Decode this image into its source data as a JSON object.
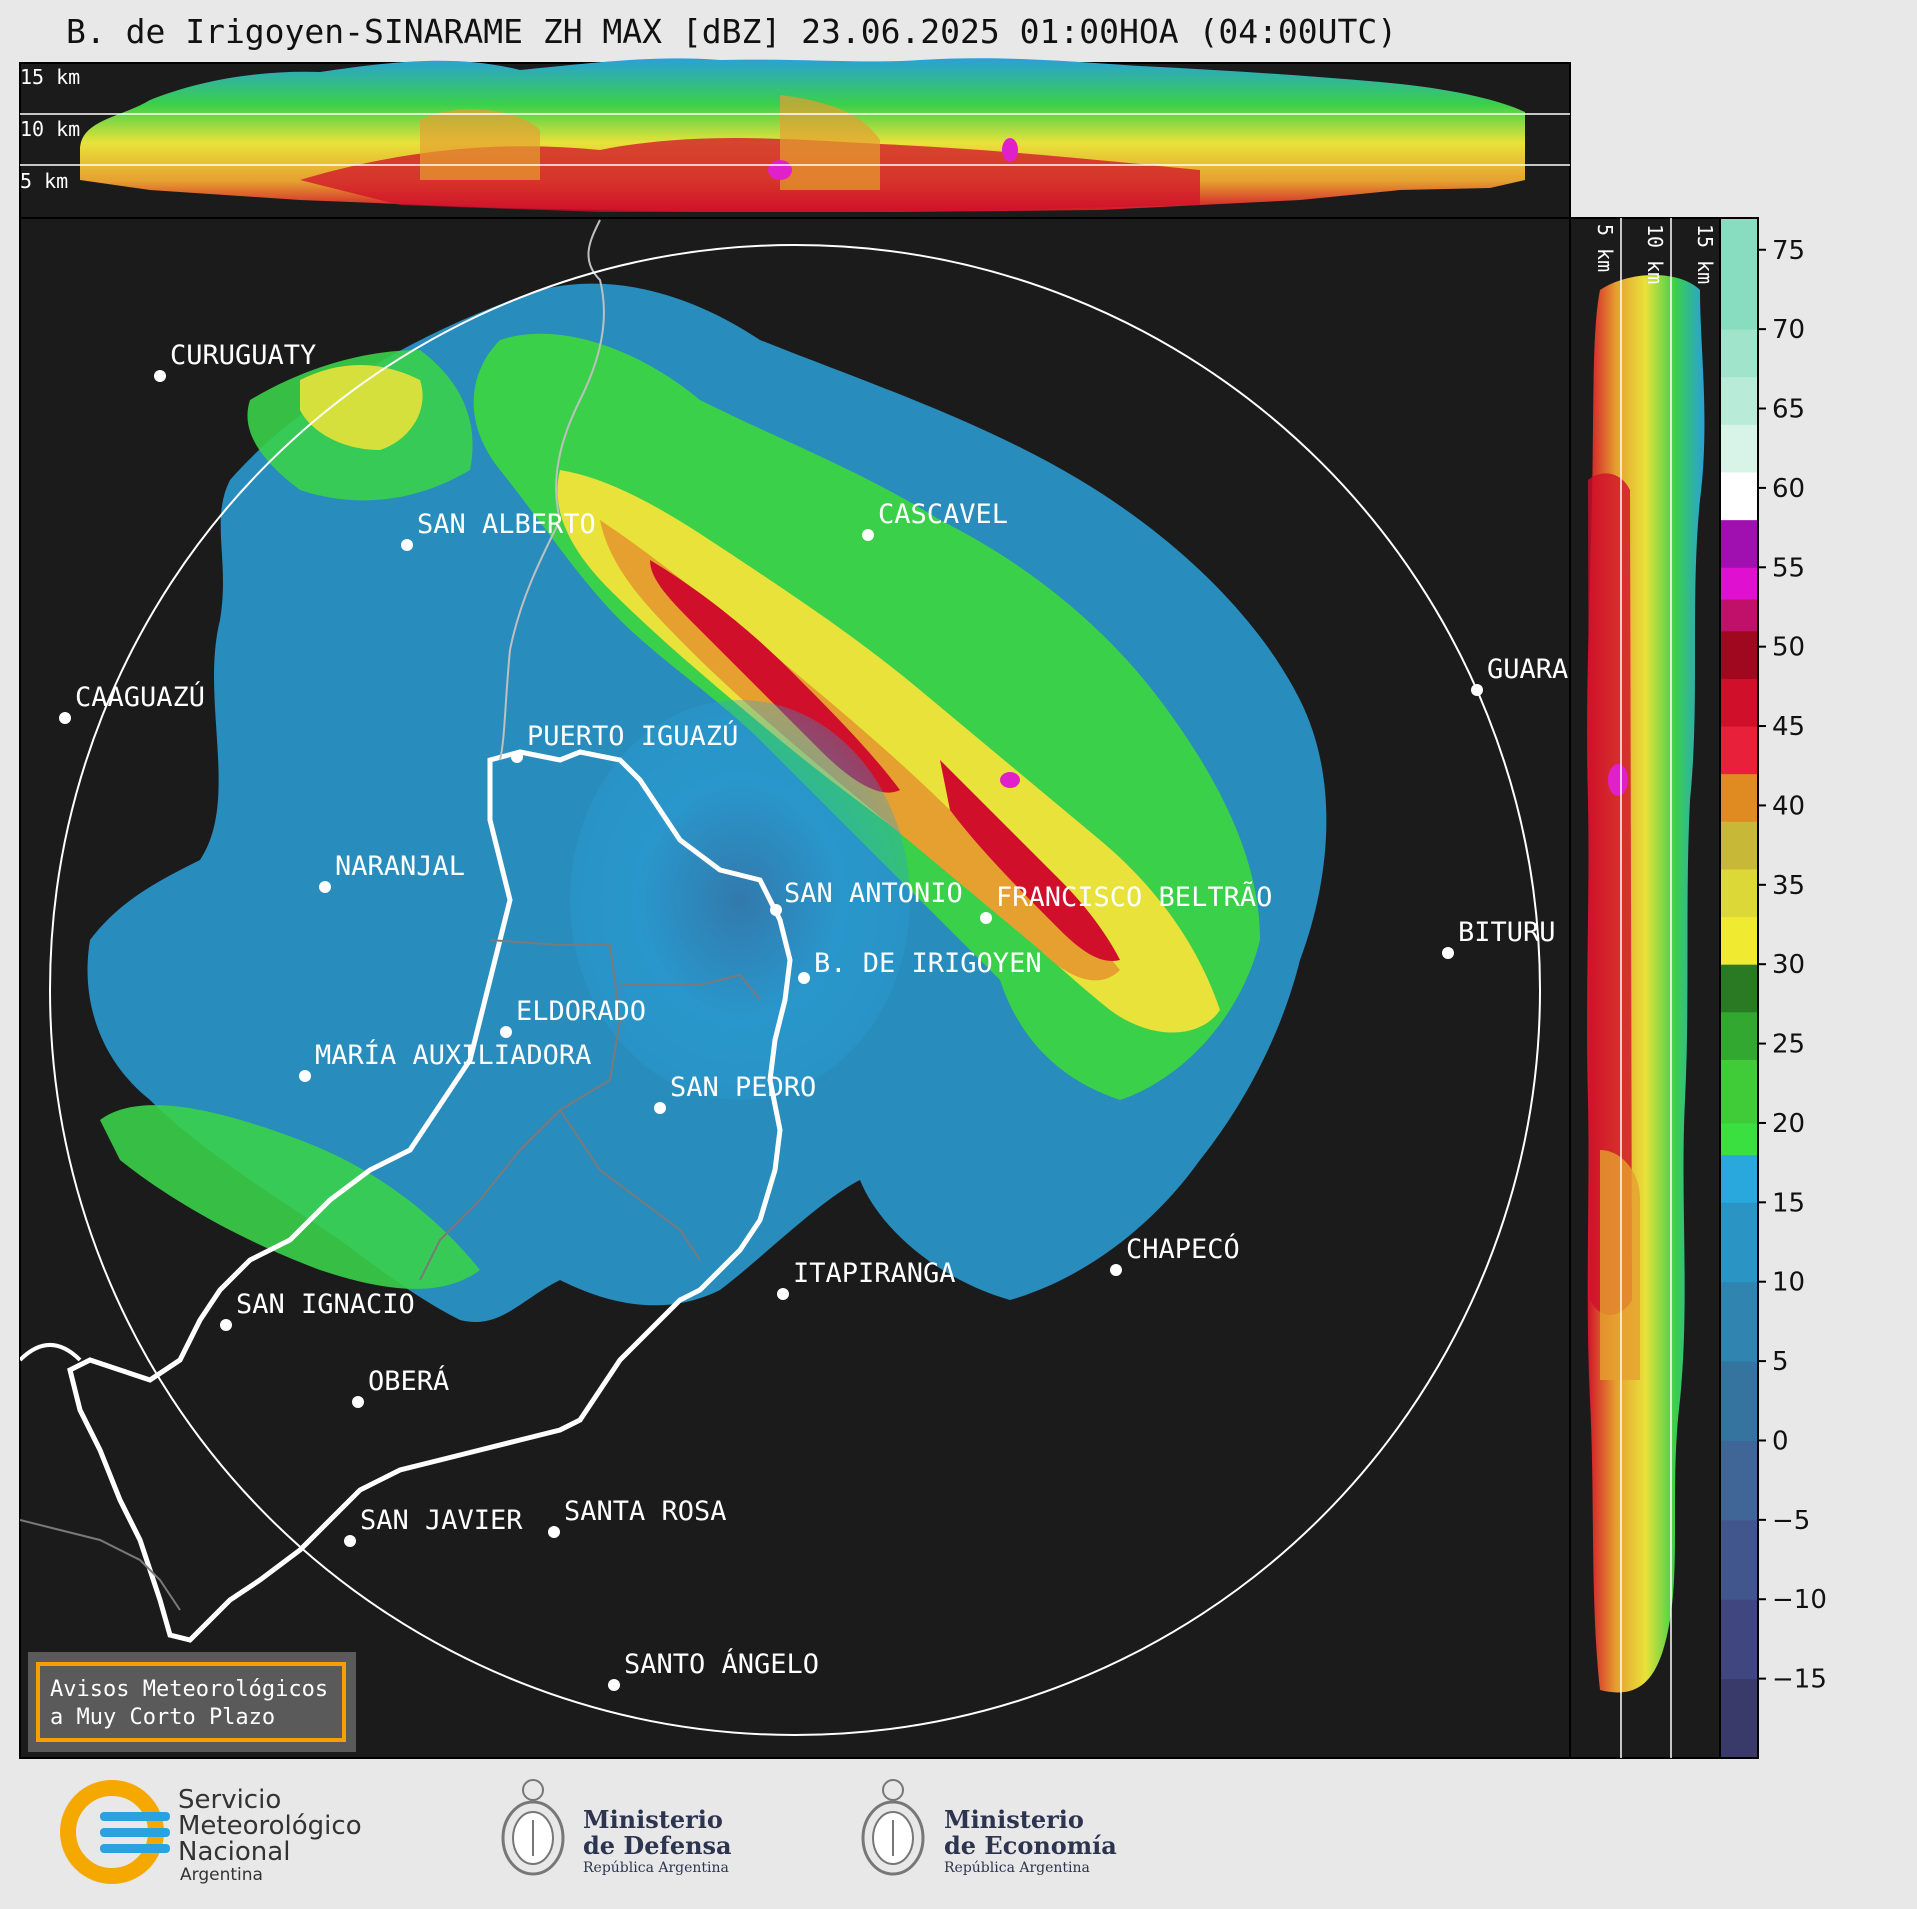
{
  "title": "B. de Irigoyen-SINARAME ZH MAX [dBZ] 23.06.2025 01:00HOA (04:00UTC)",
  "top_panel": {
    "labels": [
      "15 km",
      "10 km",
      "5 km"
    ]
  },
  "side_panel": {
    "labels": [
      "5 km",
      "10 km",
      "15 km"
    ]
  },
  "colorbar": {
    "ticks": [
      "75",
      "70",
      "65",
      "60",
      "55",
      "50",
      "45",
      "40",
      "35",
      "30",
      "25",
      "20",
      "15",
      "10",
      "5",
      "0",
      "−5",
      "−10",
      "−15"
    ]
  },
  "cities": [
    {
      "name": "CURUGUATY"
    },
    {
      "name": "SAN ALBERTO"
    },
    {
      "name": "CASCAVEL"
    },
    {
      "name": "CAAGUAZÚ"
    },
    {
      "name": "GUARA"
    },
    {
      "name": "PUERTO IGUAZÚ"
    },
    {
      "name": "NARANJAL"
    },
    {
      "name": "SAN ANTONIO"
    },
    {
      "name": "FRANCISCO BELTRÃO"
    },
    {
      "name": "B. DE IRIGOYEN"
    },
    {
      "name": "BITURU"
    },
    {
      "name": "ELDORADO"
    },
    {
      "name": "MARÍA AUXILIADORA"
    },
    {
      "name": "SAN PEDRO"
    },
    {
      "name": "CHAPECÓ"
    },
    {
      "name": "ITAPIRANGA"
    },
    {
      "name": "SAN IGNACIO"
    },
    {
      "name": "OBERÁ"
    },
    {
      "name": "SAN JAVIER"
    },
    {
      "name": "SANTA ROSA"
    },
    {
      "name": "SANTO ÁNGELO"
    }
  ],
  "notice": {
    "line1": "Avisos Meteorológicos",
    "line2": "a Muy Corto Plazo"
  },
  "logos": {
    "smn": {
      "line1": "Servicio",
      "line2": "Meteorológico",
      "line3": "Nacional",
      "line4": "Argentina"
    },
    "defensa": {
      "line1": "Ministerio",
      "line2": "de Defensa",
      "line3": "República Argentina"
    },
    "economia": {
      "line1": "Ministerio",
      "line2": "de Economía",
      "line3": "República Argentina"
    }
  },
  "colors": {
    "background": "#1b1b1b",
    "accent_orange": "#f5a000",
    "smn_blue": "#29a3e0"
  }
}
